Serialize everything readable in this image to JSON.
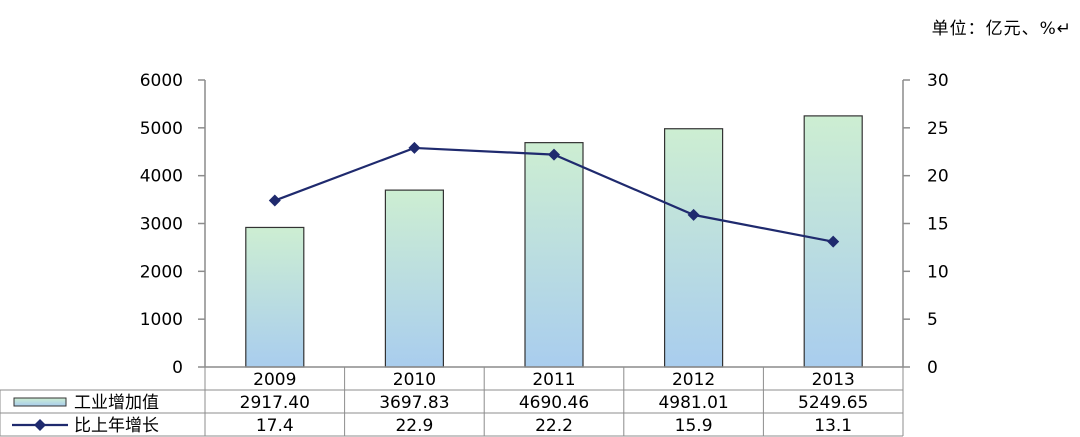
{
  "unit_label": "单位：亿元、%↵",
  "chart_data": {
    "type": "bar+line",
    "categories": [
      "2009",
      "2010",
      "2011",
      "2012",
      "2013"
    ],
    "series": [
      {
        "name": "工业增加值",
        "type": "bar",
        "axis": "left",
        "values": [
          2917.4,
          3697.83,
          4690.46,
          4981.01,
          5249.65
        ],
        "labels": [
          "2917.40",
          "3697.83",
          "4690.46",
          "4981.01",
          "5249.65"
        ],
        "color_top": "#cdeed2",
        "color_bottom": "#a9cdee"
      },
      {
        "name": "比上年增长",
        "type": "line",
        "axis": "right",
        "values": [
          17.4,
          22.9,
          22.2,
          15.9,
          13.1
        ],
        "labels": [
          "17.4",
          "22.9",
          "22.2",
          "15.9",
          "13.1"
        ],
        "color": "#1f2a6e"
      }
    ],
    "y_left": {
      "min": 0,
      "max": 6000,
      "ticks": [
        "0",
        "1000",
        "2000",
        "3000",
        "4000",
        "5000",
        "6000"
      ]
    },
    "y_right": {
      "min": 0,
      "max": 30,
      "ticks": [
        "0",
        "5",
        "10",
        "15",
        "20",
        "25",
        "30"
      ]
    },
    "legend": "data-table-left",
    "grid": false
  }
}
